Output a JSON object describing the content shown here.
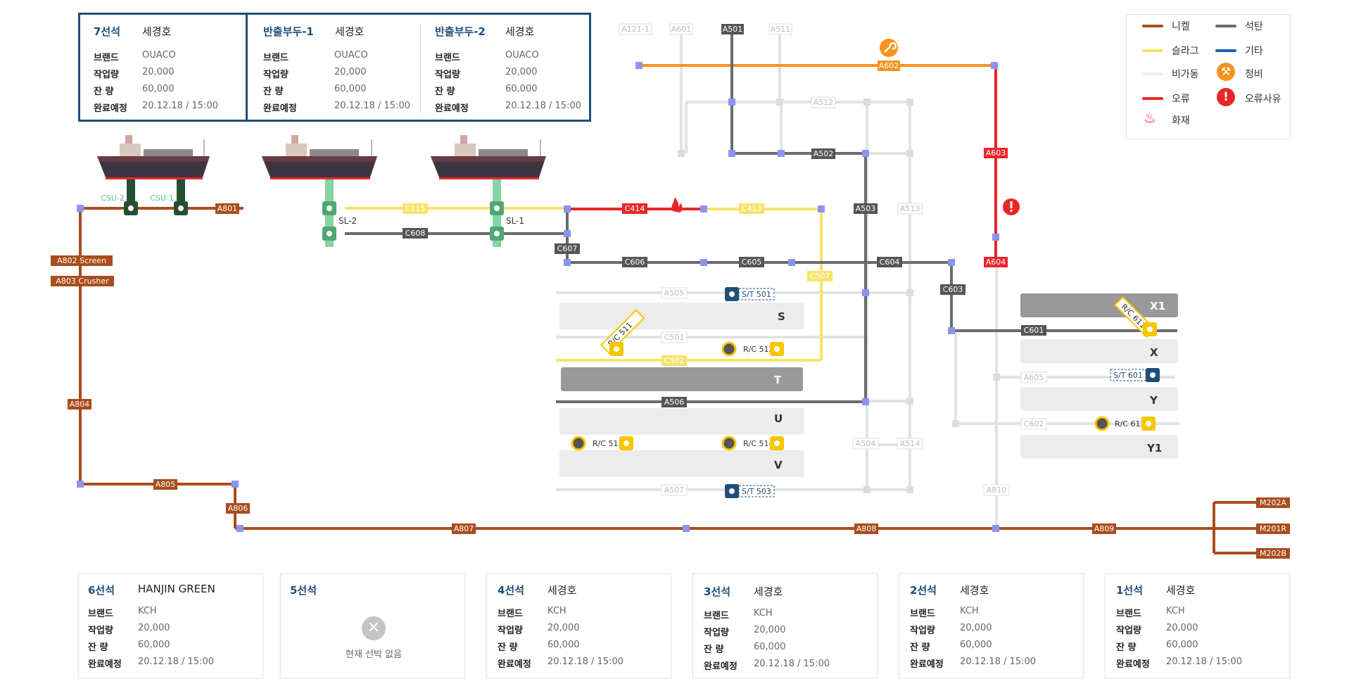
{
  "top_berths": {
    "berth7": {
      "name": "7선석",
      "ship": "세경호",
      "brand": "OUACO",
      "work": "20,000",
      "remain": "60,000",
      "finish": "20.12.18 / 15:00"
    },
    "pier1": {
      "name": "반출부두-1",
      "ship": "세경호",
      "brand": "OUACO",
      "work": "20,000",
      "remain": "60,000",
      "finish": "20.12.18 / 15:00"
    },
    "pier2": {
      "name": "반출부두-2",
      "ship": "세경호",
      "brand": "OUACO",
      "work": "20,000",
      "remain": "60,000",
      "finish": "20.12.18 / 15:00"
    }
  },
  "labels": {
    "brand": "브랜드",
    "work": "작업량",
    "remain": "잔   량",
    "finish": "완료예정"
  },
  "bottom_berths": [
    {
      "name": "6선석",
      "ship": "HANJIN GREEN",
      "brand": "KCH",
      "work": "20,000",
      "remain": "60,000",
      "finish": "20.12.18 / 15:00"
    },
    {
      "name": "5선석",
      "empty": "현재 선박 없음"
    },
    {
      "name": "4선석",
      "ship": "세경호",
      "brand": "KCH",
      "work": "20,000",
      "remain": "60,000",
      "finish": "20.12.18 / 15:00"
    },
    {
      "name": "3선석",
      "ship": "세경호",
      "brand": "KCH",
      "work": "20,000",
      "remain": "60,000",
      "finish": "20.12.18 / 15:00"
    },
    {
      "name": "2선석",
      "ship": "세경호",
      "brand": "KCH",
      "work": "20,000",
      "remain": "60,000",
      "finish": "20.12.18 / 15:00"
    },
    {
      "name": "1선석",
      "ship": "세경호",
      "brand": "KCH",
      "work": "20,000",
      "remain": "60,000",
      "finish": "20.12.18 / 15:00"
    }
  ],
  "legend": {
    "nickel": "니켈",
    "coal": "석탄",
    "slag": "슬라그",
    "other": "기타",
    "idle": "비가동",
    "maint": "정비",
    "error": "오류",
    "error_reason": "오류사유",
    "fire": "화재"
  },
  "colors": {
    "nickel": "#a94d1c",
    "coal": "#6b6b6b",
    "slag": "#f7e36b",
    "other": "#1f5fb4",
    "idle": "#e2e2e2",
    "error": "#e8262a",
    "maint": "#f7931e",
    "junction": "#8c93f0",
    "accent": "#1f4e79",
    "yard": "#ececec",
    "yard_dark": "#999999"
  },
  "conveyors": {
    "A121_1": "A121-1",
    "A601": "A601",
    "A501": "A501",
    "A511": "A511",
    "A602": "A602",
    "A512": "A512",
    "A502": "A502",
    "A603": "A603",
    "A503": "A503",
    "A513": "A513",
    "A604": "A604",
    "A801": "A801",
    "CSU2": "CSU-2",
    "CSU1": "CSU-1",
    "C115": "C115",
    "C414": "C414",
    "C413": "C413",
    "C608": "C608",
    "C607": "C607",
    "C606": "C606",
    "C605": "C605",
    "C604": "C604",
    "C603": "C603",
    "C507": "C507",
    "A505": "A505",
    "C501": "C501",
    "C502": "C502",
    "A506": "A506",
    "A507": "A507",
    "A504": "A504",
    "A514": "A514",
    "A605": "A605",
    "C601": "C601",
    "C602": "C602",
    "A810": "A810",
    "A802": "A802 Screen",
    "A803": "A803 Crusher",
    "A804": "A804",
    "A805": "A805",
    "A806": "A806",
    "A807": "A807",
    "A808": "A808",
    "A809": "A809",
    "M202A": "M202A",
    "M201R": "M201R",
    "M202B": "M202B",
    "SL2": "SL-2",
    "SL1": "SL-1"
  },
  "yards": {
    "S": "S",
    "T": "T",
    "U": "U",
    "V": "V",
    "X1": "X1",
    "X": "X",
    "Y": "Y",
    "Y1": "Y1"
  },
  "machines": {
    "st501": "S/T 501",
    "st503": "S/T 503",
    "st601": "S/T 601",
    "rc512": "R/C 512",
    "rc511": "R/C 511",
    "rc513": "R/C 513",
    "rc514": "R/C 514",
    "rc611": "R/C 611",
    "rc612": "R/C 612"
  }
}
